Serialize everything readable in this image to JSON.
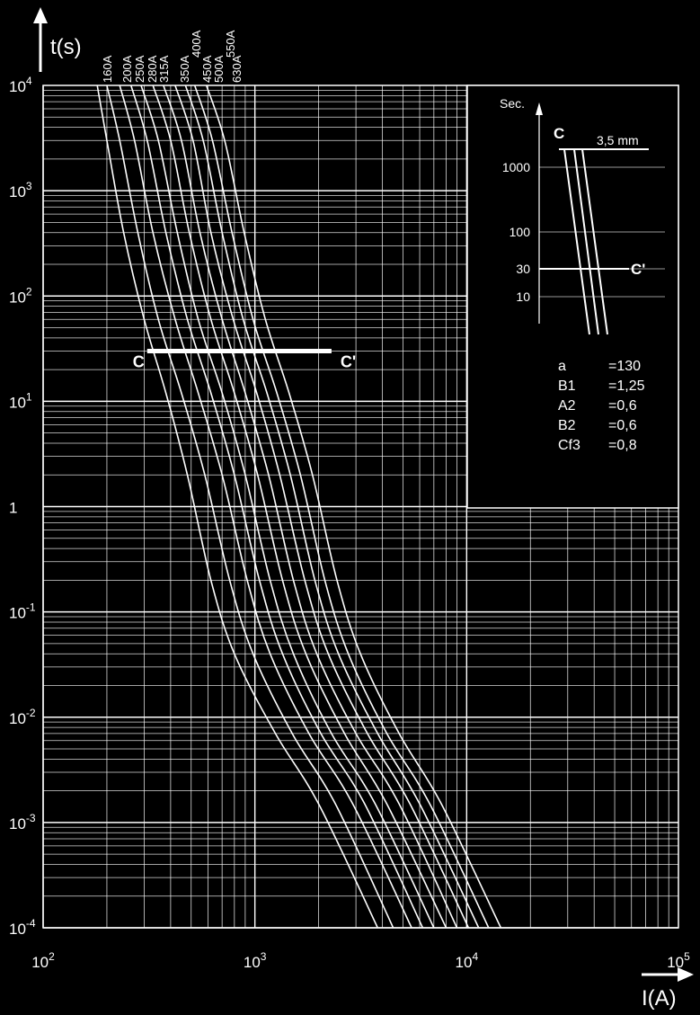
{
  "chart_data": {
    "type": "line",
    "ylabel": "t(s)",
    "xlabel": "I(A)",
    "x_scale": "log",
    "y_scale": "log",
    "xlim": [
      100,
      100000
    ],
    "ylim": [
      0.0001,
      10000
    ],
    "grid": true,
    "x_ticks": [
      {
        "value": 100,
        "base": "10",
        "exp": "2"
      },
      {
        "value": 1000,
        "base": "10",
        "exp": "3"
      },
      {
        "value": 10000,
        "base": "10",
        "exp": "4"
      },
      {
        "value": 100000,
        "base": "10",
        "exp": "5"
      }
    ],
    "y_ticks": [
      {
        "value": 10000,
        "base": "10",
        "exp": "4"
      },
      {
        "value": 1000,
        "base": "10",
        "exp": "3"
      },
      {
        "value": 100,
        "base": "10",
        "exp": "2"
      },
      {
        "value": 10,
        "base": "10",
        "exp": "1"
      },
      {
        "value": 1,
        "base": "1",
        "exp": ""
      },
      {
        "value": 0.1,
        "base": "10",
        "exp": "-1"
      },
      {
        "value": 0.01,
        "base": "10",
        "exp": "-2"
      },
      {
        "value": 0.001,
        "base": "10",
        "exp": "-3"
      },
      {
        "value": 0.0001,
        "base": "10",
        "exp": "-4"
      }
    ],
    "series_labels": [
      "160A",
      "200A",
      "250A",
      "280A",
      "315A",
      "350A",
      "400A",
      "450A",
      "500A",
      "550A",
      "630A"
    ],
    "series": [
      {
        "name": "160A",
        "x": [
          180,
          200,
          240,
          300,
          380,
          480,
          620,
          800,
          1250,
          2000,
          3800
        ],
        "t": [
          10000,
          3000,
          400,
          60,
          12,
          2,
          0.2,
          0.04,
          0.007,
          0.0015,
          0.0001
        ]
      },
      {
        "name": "200A",
        "x": [
          200,
          230,
          280,
          350,
          450,
          580,
          760,
          980,
          1500,
          2400,
          4500
        ],
        "t": [
          10000,
          3000,
          400,
          60,
          12,
          2,
          0.2,
          0.04,
          0.007,
          0.0015,
          0.0001
        ]
      },
      {
        "name": "250A",
        "x": [
          230,
          270,
          330,
          420,
          540,
          700,
          920,
          1180,
          1800,
          2900,
          5500
        ],
        "t": [
          10000,
          3000,
          400,
          60,
          12,
          2,
          0.2,
          0.04,
          0.007,
          0.0015,
          0.0001
        ]
      },
      {
        "name": "280A",
        "x": [
          260,
          310,
          380,
          480,
          620,
          800,
          1050,
          1350,
          2050,
          3300,
          6200
        ],
        "t": [
          10000,
          3000,
          400,
          60,
          12,
          2,
          0.2,
          0.04,
          0.007,
          0.0015,
          0.0001
        ]
      },
      {
        "name": "315A",
        "x": [
          290,
          350,
          430,
          540,
          700,
          900,
          1180,
          1520,
          2300,
          3700,
          7000
        ],
        "t": [
          10000,
          3000,
          400,
          60,
          12,
          2,
          0.2,
          0.04,
          0.007,
          0.0015,
          0.0001
        ]
      },
      {
        "name": "350A",
        "x": [
          330,
          400,
          490,
          620,
          800,
          1030,
          1350,
          1740,
          2650,
          4200,
          8000
        ],
        "t": [
          10000,
          3000,
          400,
          60,
          12,
          2,
          0.2,
          0.04,
          0.007,
          0.0015,
          0.0001
        ]
      },
      {
        "name": "400A",
        "x": [
          370,
          450,
          550,
          700,
          900,
          1160,
          1520,
          1960,
          3000,
          4800,
          9000
        ],
        "t": [
          10000,
          3000,
          400,
          60,
          12,
          2,
          0.2,
          0.04,
          0.007,
          0.0015,
          0.0001
        ]
      },
      {
        "name": "450A",
        "x": [
          420,
          510,
          620,
          790,
          1020,
          1310,
          1720,
          2220,
          3400,
          5400,
          10200
        ],
        "t": [
          10000,
          3000,
          400,
          60,
          12,
          2,
          0.2,
          0.04,
          0.007,
          0.0015,
          0.0001
        ]
      },
      {
        "name": "500A",
        "x": [
          470,
          570,
          700,
          880,
          1140,
          1470,
          1920,
          2480,
          3800,
          6000,
          11400
        ],
        "t": [
          10000,
          3000,
          400,
          60,
          12,
          2,
          0.2,
          0.04,
          0.007,
          0.0015,
          0.0001
        ]
      },
      {
        "name": "550A",
        "x": [
          520,
          630,
          780,
          980,
          1270,
          1640,
          2140,
          2760,
          4200,
          6700,
          12700
        ],
        "t": [
          10000,
          3000,
          400,
          60,
          12,
          2,
          0.2,
          0.04,
          0.007,
          0.0015,
          0.0001
        ]
      },
      {
        "name": "630A",
        "x": [
          590,
          720,
          890,
          1120,
          1450,
          1870,
          2440,
          3150,
          4800,
          7600,
          14500
        ],
        "t": [
          10000,
          3000,
          400,
          60,
          12,
          2,
          0.2,
          0.04,
          0.007,
          0.0015,
          0.0001
        ]
      }
    ],
    "markers": {
      "c_line": {
        "left_label": "C",
        "right_label": "C'",
        "t": 30,
        "x_from": 310,
        "x_to": 2300
      }
    },
    "inset": {
      "unit_label": "Sec.",
      "y_ticks": [
        "1000",
        "100",
        "30",
        "10"
      ],
      "c_label": "C",
      "c_prime_label": "C'",
      "dimension_label": "3,5 mm",
      "parameters": [
        {
          "name": "a",
          "value": "=130"
        },
        {
          "name": "B1",
          "value": "=1,25"
        },
        {
          "name": "A2",
          "value": "=0,6"
        },
        {
          "name": "B2",
          "value": "=0,6"
        },
        {
          "name": "Cf3",
          "value": "=0,8"
        }
      ]
    },
    "colors": {
      "background": "#000000",
      "foreground": "#ffffff"
    }
  }
}
